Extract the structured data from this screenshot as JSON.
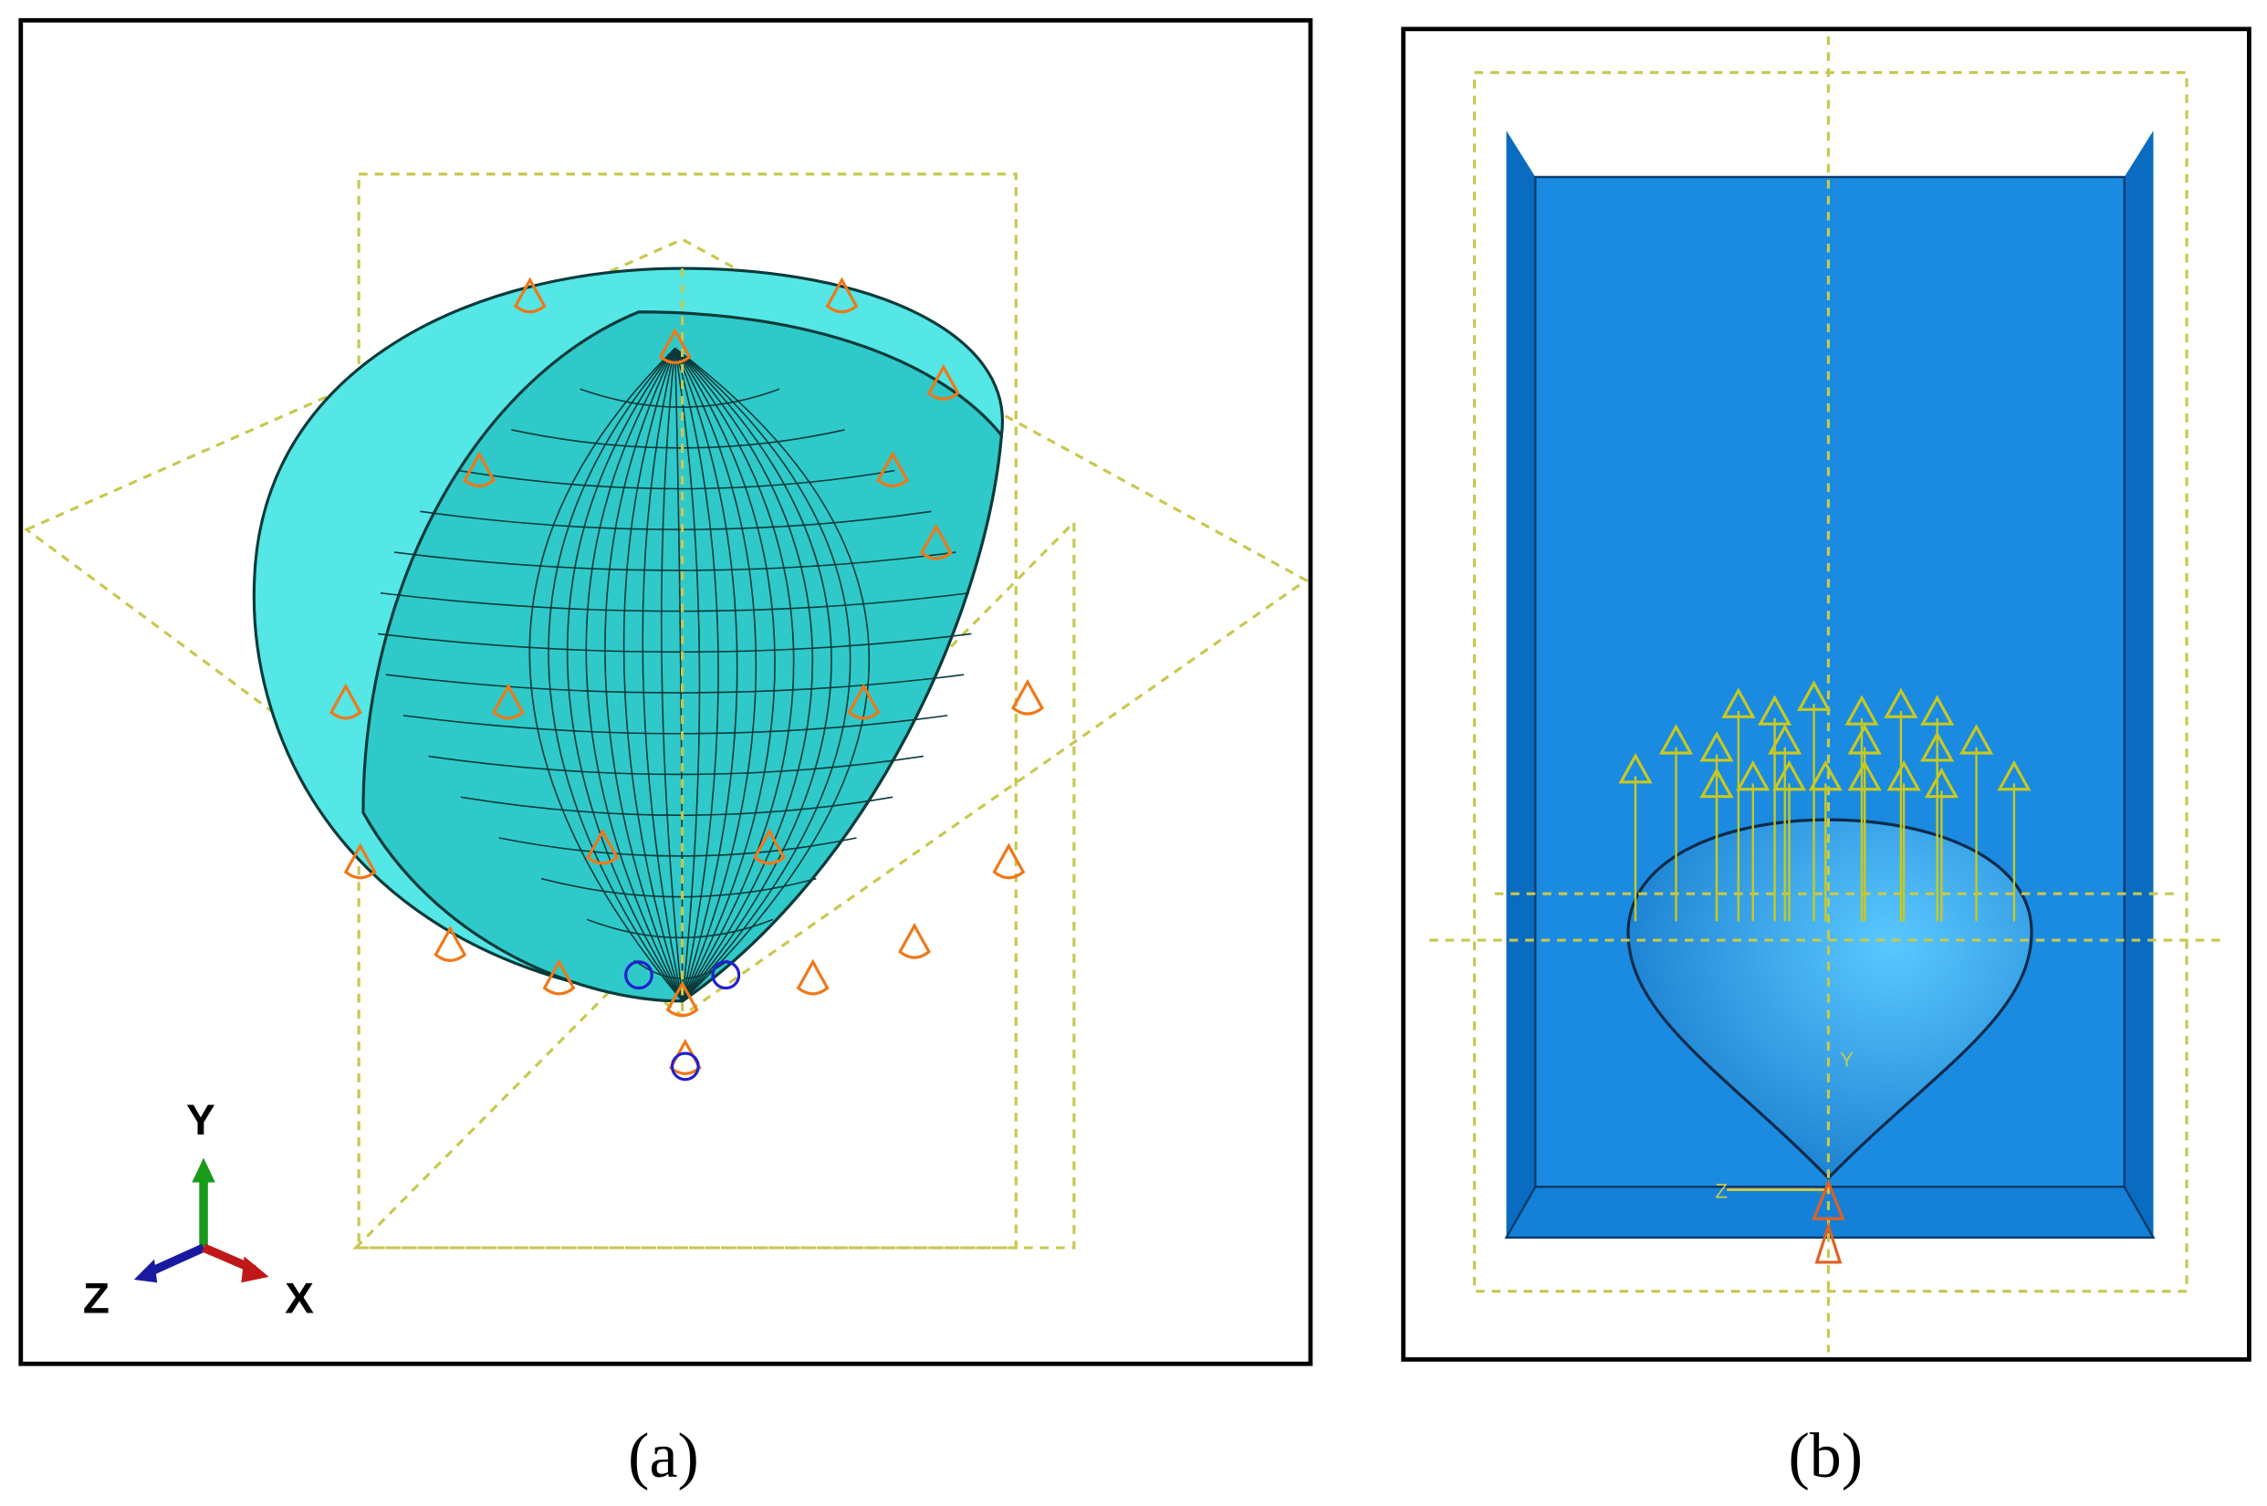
{
  "panel_a": {
    "axis_y": "Y",
    "axis_z": "Z",
    "axis_x": "X",
    "caption": "(a)"
  },
  "panel_b": {
    "axis_y": "Y",
    "axis_z": "Z",
    "caption": "(b)"
  }
}
